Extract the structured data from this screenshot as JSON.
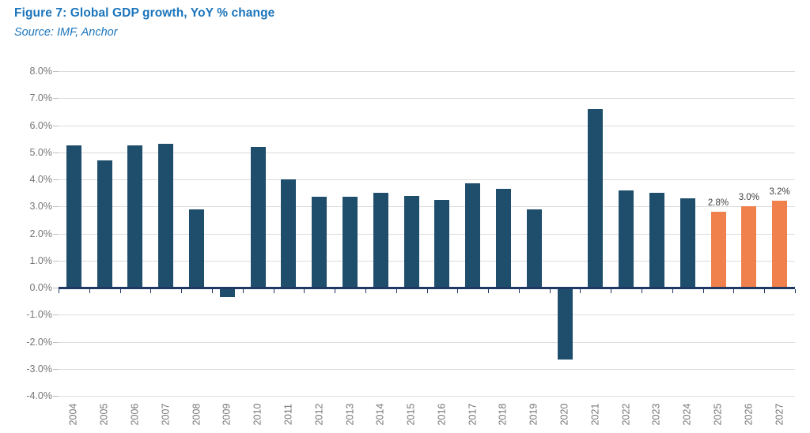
{
  "header": {
    "title": "Figure 7: Global GDP growth, YoY % change",
    "source": "Source: IMF, Anchor",
    "title_color": "#1B75BC"
  },
  "chart_data": {
    "type": "bar",
    "title": "Figure 7: Global GDP growth, YoY % change",
    "subtitle": "Source: IMF, Anchor",
    "xlabel": "",
    "ylabel": "",
    "categories": [
      "2004",
      "2005",
      "2006",
      "2007",
      "2008",
      "2009",
      "2010",
      "2011",
      "2012",
      "2013",
      "2014",
      "2015",
      "2016",
      "2017",
      "2018",
      "2019",
      "2020",
      "2021",
      "2022",
      "2023",
      "2024",
      "2025",
      "2026",
      "2027"
    ],
    "values": [
      5.25,
      4.7,
      5.25,
      5.3,
      2.9,
      -0.35,
      5.2,
      4.0,
      3.35,
      3.35,
      3.5,
      3.4,
      3.25,
      3.85,
      3.65,
      2.9,
      -2.65,
      6.6,
      3.6,
      3.5,
      3.3,
      2.8,
      3.0,
      3.2
    ],
    "data_labels": [
      null,
      null,
      null,
      null,
      null,
      null,
      null,
      null,
      null,
      null,
      null,
      null,
      null,
      null,
      null,
      null,
      null,
      null,
      null,
      null,
      null,
      "2.8%",
      "3.0%",
      "3.2%"
    ],
    "forecast_categories": [
      "2025",
      "2026",
      "2027"
    ],
    "ylim": [
      -4,
      8
    ],
    "ytick_step": 1,
    "ytick_labels": [
      "8.0%",
      "7.0%",
      "6.0%",
      "5.0%",
      "4.0%",
      "3.0%",
      "2.0%",
      "1.0%",
      "0.0%",
      "-1.0%",
      "-2.0%",
      "-3.0%",
      "-4.0%"
    ],
    "grid": true,
    "legend": false,
    "colors": {
      "actual_bar": "#1F4E6D",
      "forecast_bar": "#F0814C",
      "axis_line": "#203864",
      "gridline": "#DCDCDC",
      "y_tick": "#C0C0C0",
      "axis_text": "#767676",
      "data_label": "#404040"
    }
  }
}
